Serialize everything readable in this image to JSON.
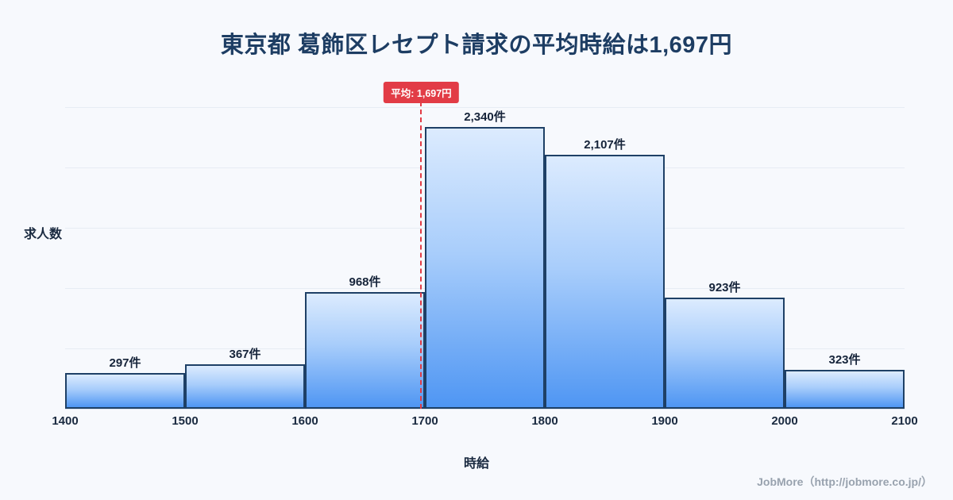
{
  "title": "東京都 葛飾区レセプト請求の平均時給は1,697円",
  "chart_data": {
    "type": "bar",
    "subtype": "histogram",
    "bin_edges": [
      1400,
      1500,
      1600,
      1700,
      1800,
      1900,
      2000,
      2100
    ],
    "categories": [
      "1400-1500",
      "1500-1600",
      "1600-1700",
      "1700-1800",
      "1800-1900",
      "1900-2000",
      "2000-2100"
    ],
    "values": [
      297,
      367,
      968,
      2340,
      2107,
      923,
      323
    ],
    "value_labels": [
      "297件",
      "367件",
      "968件",
      "2,340件",
      "2,107件",
      "923件",
      "323件"
    ],
    "x_ticks": [
      "1400",
      "1500",
      "1600",
      "1700",
      "1800",
      "1900",
      "2000",
      "2100"
    ],
    "xlabel": "時給",
    "ylabel": "求人数",
    "ylim": [
      0,
      2600
    ],
    "y_gridlines": [
      500,
      1000,
      1500,
      2000,
      2500
    ],
    "grid": true,
    "legend": "none",
    "average": {
      "value": 1697,
      "label": "平均: 1,697円"
    },
    "colors": {
      "background": "#f7f9fd",
      "title": "#1d3d63",
      "bar_gradient_top": "#dcebfe",
      "bar_gradient_bottom": "#4f96f3",
      "bar_border": "#1e4066",
      "average_accent": "#e23c46",
      "gridline": "#e7ecf4"
    }
  },
  "footer": {
    "text": "JobMore（http://jobmore.co.jp/）"
  }
}
